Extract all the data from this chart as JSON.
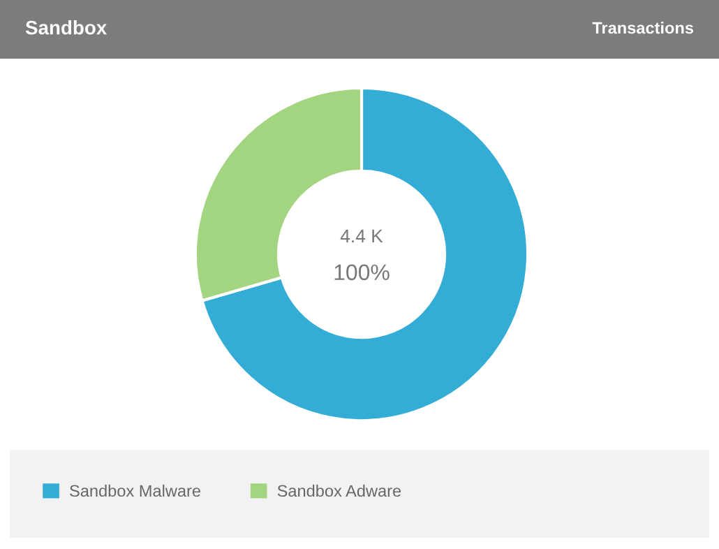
{
  "chart_data": {
    "type": "donut",
    "title": "Sandbox",
    "subtitle": "Transactions",
    "categories": [
      "Sandbox Malware",
      "Sandbox Adware"
    ],
    "values": [
      70.5,
      29.5
    ],
    "colors": [
      "#33acd6",
      "#a3d47f"
    ],
    "annotations": [
      "4.4 K",
      "100%"
    ],
    "legend": "bottom"
  }
}
